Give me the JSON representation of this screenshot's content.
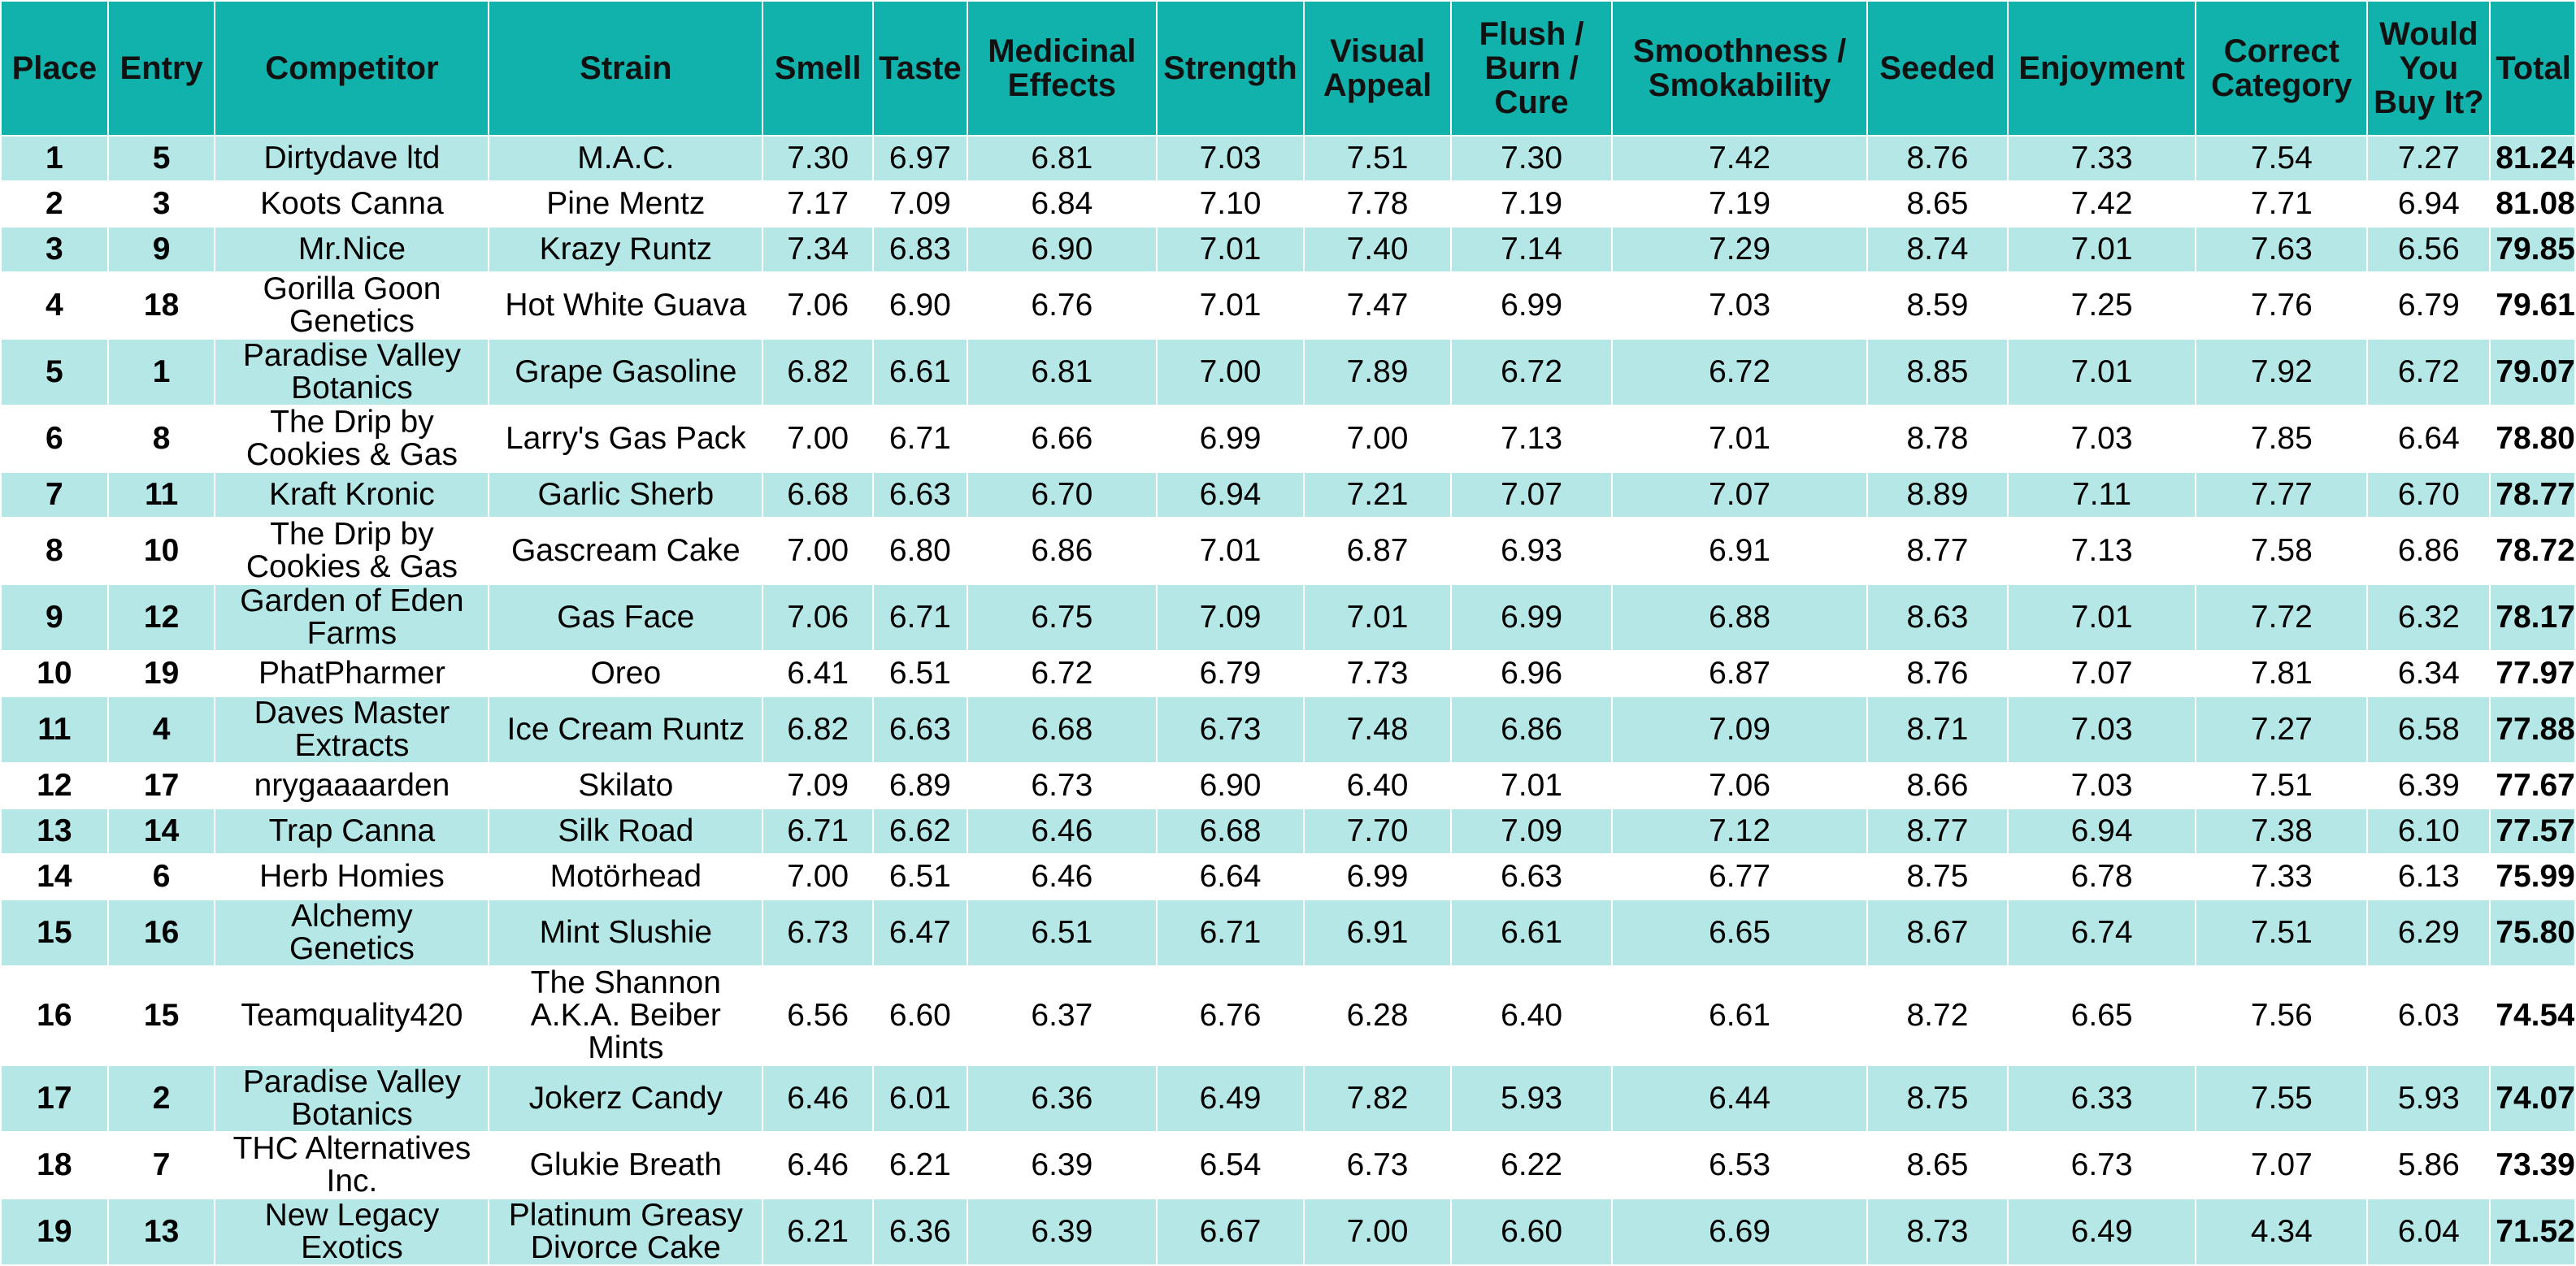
{
  "headers": {
    "place": "Place",
    "entry": "Entry",
    "competitor": "Competitor",
    "strain": "Strain",
    "smell": "Smell",
    "taste": "Taste",
    "medicinal": [
      "Medicinal",
      "Effects"
    ],
    "strength": "Strength",
    "visual": [
      "Visual",
      "Appeal"
    ],
    "flush": [
      "Flush /",
      "Burn /",
      "Cure"
    ],
    "smooth": [
      "Smoothness /",
      "Smokability"
    ],
    "seeded": "Seeded",
    "enjoyment": "Enjoyment",
    "category": [
      "Correct",
      "Category"
    ],
    "buy": [
      "Would",
      "You",
      "Buy It?"
    ],
    "total": "Total"
  },
  "rows": [
    {
      "place": "1",
      "entry": "5",
      "competitor": [
        "Dirtydave ltd"
      ],
      "strain": [
        "M.A.C."
      ],
      "smell": "7.30",
      "taste": "6.97",
      "medicinal": "6.81",
      "strength": "7.03",
      "visual": "7.51",
      "flush": "7.30",
      "smooth": "7.42",
      "seeded": "8.76",
      "enjoyment": "7.33",
      "category": "7.54",
      "buy": "7.27",
      "total": "81.24"
    },
    {
      "place": "2",
      "entry": "3",
      "competitor": [
        "Koots Canna"
      ],
      "strain": [
        "Pine Mentz"
      ],
      "smell": "7.17",
      "taste": "7.09",
      "medicinal": "6.84",
      "strength": "7.10",
      "visual": "7.78",
      "flush": "7.19",
      "smooth": "7.19",
      "seeded": "8.65",
      "enjoyment": "7.42",
      "category": "7.71",
      "buy": "6.94",
      "total": "81.08"
    },
    {
      "place": "3",
      "entry": "9",
      "competitor": [
        "Mr.Nice"
      ],
      "strain": [
        "Krazy Runtz"
      ],
      "smell": "7.34",
      "taste": "6.83",
      "medicinal": "6.90",
      "strength": "7.01",
      "visual": "7.40",
      "flush": "7.14",
      "smooth": "7.29",
      "seeded": "8.74",
      "enjoyment": "7.01",
      "category": "7.63",
      "buy": "6.56",
      "total": "79.85"
    },
    {
      "place": "4",
      "entry": "18",
      "competitor": [
        "Gorilla Goon",
        "Genetics"
      ],
      "strain": [
        "Hot White Guava"
      ],
      "smell": "7.06",
      "taste": "6.90",
      "medicinal": "6.76",
      "strength": "7.01",
      "visual": "7.47",
      "flush": "6.99",
      "smooth": "7.03",
      "seeded": "8.59",
      "enjoyment": "7.25",
      "category": "7.76",
      "buy": "6.79",
      "total": "79.61"
    },
    {
      "place": "5",
      "entry": "1",
      "competitor": [
        "Paradise Valley",
        "Botanics"
      ],
      "strain": [
        "Grape Gasoline"
      ],
      "smell": "6.82",
      "taste": "6.61",
      "medicinal": "6.81",
      "strength": "7.00",
      "visual": "7.89",
      "flush": "6.72",
      "smooth": "6.72",
      "seeded": "8.85",
      "enjoyment": "7.01",
      "category": "7.92",
      "buy": "6.72",
      "total": "79.07"
    },
    {
      "place": "6",
      "entry": "8",
      "competitor": [
        "The Drip by",
        "Cookies & Gas"
      ],
      "strain": [
        "Larry's Gas Pack"
      ],
      "smell": "7.00",
      "taste": "6.71",
      "medicinal": "6.66",
      "strength": "6.99",
      "visual": "7.00",
      "flush": "7.13",
      "smooth": "7.01",
      "seeded": "8.78",
      "enjoyment": "7.03",
      "category": "7.85",
      "buy": "6.64",
      "total": "78.80"
    },
    {
      "place": "7",
      "entry": "11",
      "competitor": [
        "Kraft Kronic"
      ],
      "strain": [
        "Garlic Sherb"
      ],
      "smell": "6.68",
      "taste": "6.63",
      "medicinal": "6.70",
      "strength": "6.94",
      "visual": "7.21",
      "flush": "7.07",
      "smooth": "7.07",
      "seeded": "8.89",
      "enjoyment": "7.11",
      "category": "7.77",
      "buy": "6.70",
      "total": "78.77"
    },
    {
      "place": "8",
      "entry": "10",
      "competitor": [
        "The Drip by",
        "Cookies & Gas"
      ],
      "strain": [
        "Gascream Cake"
      ],
      "smell": "7.00",
      "taste": "6.80",
      "medicinal": "6.86",
      "strength": "7.01",
      "visual": "6.87",
      "flush": "6.93",
      "smooth": "6.91",
      "seeded": "8.77",
      "enjoyment": "7.13",
      "category": "7.58",
      "buy": "6.86",
      "total": "78.72"
    },
    {
      "place": "9",
      "entry": "12",
      "competitor": [
        "Garden of Eden",
        "Farms"
      ],
      "strain": [
        "Gas Face"
      ],
      "smell": "7.06",
      "taste": "6.71",
      "medicinal": "6.75",
      "strength": "7.09",
      "visual": "7.01",
      "flush": "6.99",
      "smooth": "6.88",
      "seeded": "8.63",
      "enjoyment": "7.01",
      "category": "7.72",
      "buy": "6.32",
      "total": "78.17"
    },
    {
      "place": "10",
      "entry": "19",
      "competitor": [
        "PhatPharmer"
      ],
      "strain": [
        "Oreo"
      ],
      "smell": "6.41",
      "taste": "6.51",
      "medicinal": "6.72",
      "strength": "6.79",
      "visual": "7.73",
      "flush": "6.96",
      "smooth": "6.87",
      "seeded": "8.76",
      "enjoyment": "7.07",
      "category": "7.81",
      "buy": "6.34",
      "total": "77.97"
    },
    {
      "place": "11",
      "entry": "4",
      "competitor": [
        "Daves Master",
        "Extracts"
      ],
      "strain": [
        "Ice Cream Runtz"
      ],
      "smell": "6.82",
      "taste": "6.63",
      "medicinal": "6.68",
      "strength": "6.73",
      "visual": "7.48",
      "flush": "6.86",
      "smooth": "7.09",
      "seeded": "8.71",
      "enjoyment": "7.03",
      "category": "7.27",
      "buy": "6.58",
      "total": "77.88"
    },
    {
      "place": "12",
      "entry": "17",
      "competitor": [
        "nrygaaaarden"
      ],
      "strain": [
        "Skilato"
      ],
      "smell": "7.09",
      "taste": "6.89",
      "medicinal": "6.73",
      "strength": "6.90",
      "visual": "6.40",
      "flush": "7.01",
      "smooth": "7.06",
      "seeded": "8.66",
      "enjoyment": "7.03",
      "category": "7.51",
      "buy": "6.39",
      "total": "77.67"
    },
    {
      "place": "13",
      "entry": "14",
      "competitor": [
        "Trap Canna"
      ],
      "strain": [
        "Silk Road"
      ],
      "smell": "6.71",
      "taste": "6.62",
      "medicinal": "6.46",
      "strength": "6.68",
      "visual": "7.70",
      "flush": "7.09",
      "smooth": "7.12",
      "seeded": "8.77",
      "enjoyment": "6.94",
      "category": "7.38",
      "buy": "6.10",
      "total": "77.57"
    },
    {
      "place": "14",
      "entry": "6",
      "competitor": [
        "Herb Homies"
      ],
      "strain": [
        "Motörhead"
      ],
      "smell": "7.00",
      "taste": "6.51",
      "medicinal": "6.46",
      "strength": "6.64",
      "visual": "6.99",
      "flush": "6.63",
      "smooth": "6.77",
      "seeded": "8.75",
      "enjoyment": "6.78",
      "category": "7.33",
      "buy": "6.13",
      "total": "75.99"
    },
    {
      "place": "15",
      "entry": "16",
      "competitor": [
        "Alchemy",
        "Genetics"
      ],
      "strain": [
        "Mint Slushie"
      ],
      "smell": "6.73",
      "taste": "6.47",
      "medicinal": "6.51",
      "strength": "6.71",
      "visual": "6.91",
      "flush": "6.61",
      "smooth": "6.65",
      "seeded": "8.67",
      "enjoyment": "6.74",
      "category": "7.51",
      "buy": "6.29",
      "total": "75.80"
    },
    {
      "place": "16",
      "entry": "15",
      "competitor": [
        "Teamquality420"
      ],
      "strain": [
        "The Shannon",
        "A.K.A. Beiber",
        "Mints"
      ],
      "smell": "6.56",
      "taste": "6.60",
      "medicinal": "6.37",
      "strength": "6.76",
      "visual": "6.28",
      "flush": "6.40",
      "smooth": "6.61",
      "seeded": "8.72",
      "enjoyment": "6.65",
      "category": "7.56",
      "buy": "6.03",
      "total": "74.54"
    },
    {
      "place": "17",
      "entry": "2",
      "competitor": [
        "Paradise Valley",
        "Botanics"
      ],
      "strain": [
        "Jokerz Candy"
      ],
      "smell": "6.46",
      "taste": "6.01",
      "medicinal": "6.36",
      "strength": "6.49",
      "visual": "7.82",
      "flush": "5.93",
      "smooth": "6.44",
      "seeded": "8.75",
      "enjoyment": "6.33",
      "category": "7.55",
      "buy": "5.93",
      "total": "74.07"
    },
    {
      "place": "18",
      "entry": "7",
      "competitor": [
        "THC Alternatives",
        "Inc."
      ],
      "strain": [
        "Glukie Breath"
      ],
      "smell": "6.46",
      "taste": "6.21",
      "medicinal": "6.39",
      "strength": "6.54",
      "visual": "6.73",
      "flush": "6.22",
      "smooth": "6.53",
      "seeded": "8.65",
      "enjoyment": "6.73",
      "category": "7.07",
      "buy": "5.86",
      "total": "73.39"
    },
    {
      "place": "19",
      "entry": "13",
      "competitor": [
        "New Legacy",
        "Exotics"
      ],
      "strain": [
        "Platinum Greasy",
        "Divorce Cake"
      ],
      "smell": "6.21",
      "taste": "6.36",
      "medicinal": "6.39",
      "strength": "6.67",
      "visual": "7.00",
      "flush": "6.60",
      "smooth": "6.69",
      "seeded": "8.73",
      "enjoyment": "6.49",
      "category": "4.34",
      "buy": "6.04",
      "total": "71.52"
    }
  ],
  "colors": {
    "header_bg": "#12b2ac",
    "stripe_bg": "#b4e7e6",
    "plain_bg": "#ffffff"
  }
}
